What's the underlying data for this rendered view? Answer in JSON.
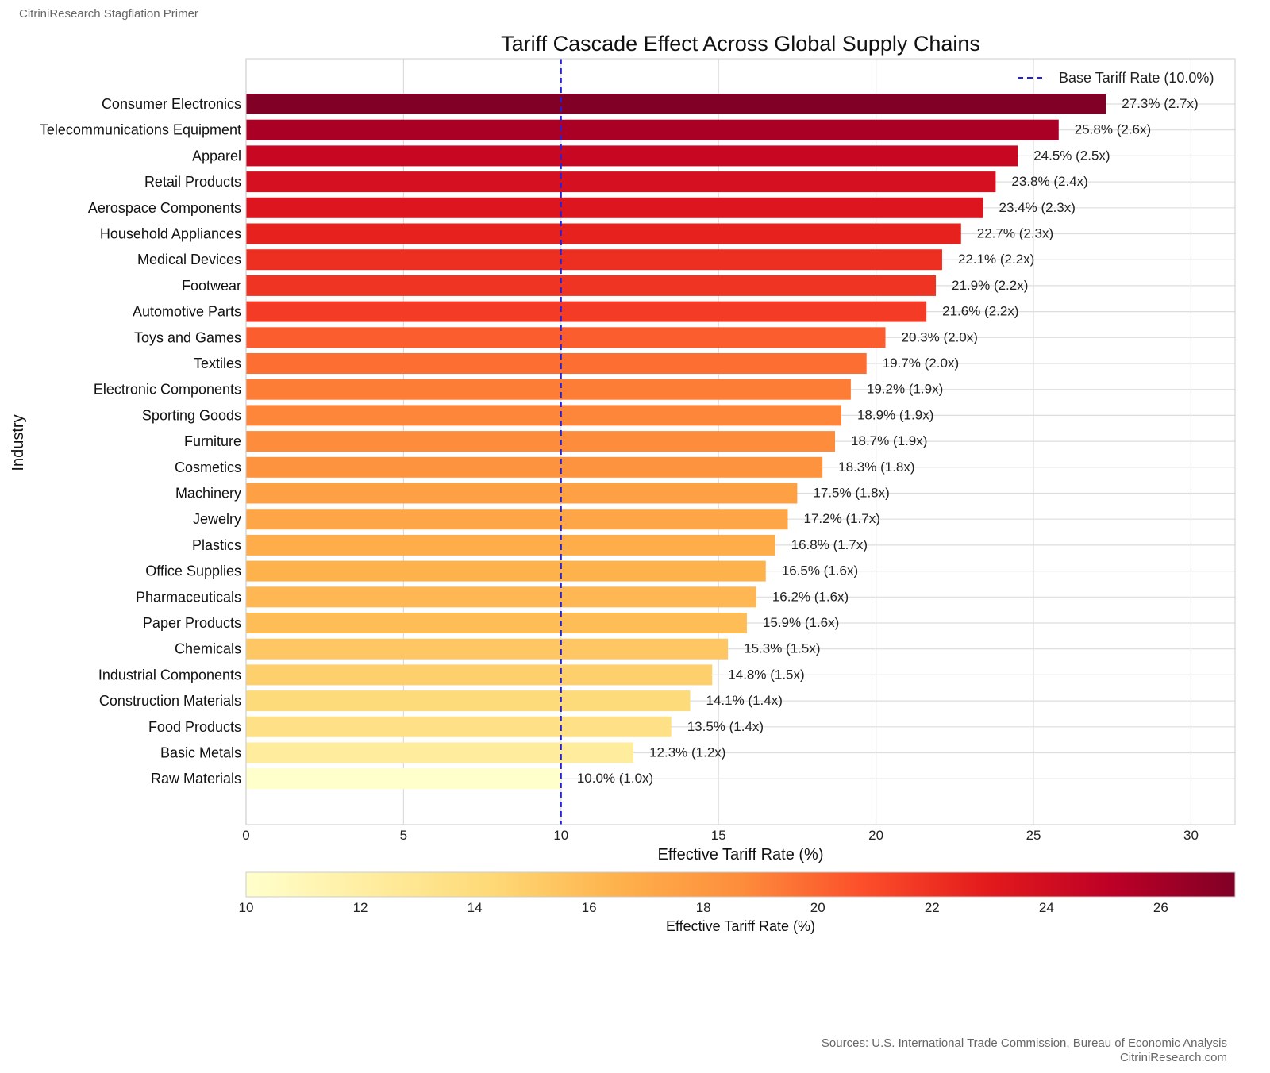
{
  "header": {
    "source_title": "CitriniResearch Stagflation Primer"
  },
  "footer": {
    "sources": "Sources: U.S. International Trade Commission, Bureau of Economic Analysis",
    "site": "CitriniResearch.com"
  },
  "colors": {
    "base_line": "#2222dd",
    "grid": "#dddddd",
    "spine": "#cccccc"
  },
  "chart_data": {
    "type": "bar",
    "orientation": "horizontal",
    "title": "Tariff Cascade Effect Across Global Supply Chains",
    "xlabel": "Effective Tariff Rate (%)",
    "ylabel": "Industry",
    "xlim": [
      0,
      31.4
    ],
    "xticks": [
      0,
      5,
      10,
      15,
      20,
      25,
      30
    ],
    "grid": true,
    "categories": [
      "Consumer Electronics",
      "Telecommunications Equipment",
      "Apparel",
      "Retail Products",
      "Aerospace Components",
      "Household Appliances",
      "Medical Devices",
      "Footwear",
      "Automotive Parts",
      "Toys and Games",
      "Textiles",
      "Electronic Components",
      "Sporting Goods",
      "Furniture",
      "Cosmetics",
      "Machinery",
      "Jewelry",
      "Plastics",
      "Office Supplies",
      "Pharmaceuticals",
      "Paper Products",
      "Chemicals",
      "Industrial Components",
      "Construction Materials",
      "Food Products",
      "Basic Metals",
      "Raw Materials"
    ],
    "values": [
      27.3,
      25.8,
      24.5,
      23.8,
      23.4,
      22.7,
      22.1,
      21.9,
      21.6,
      20.3,
      19.7,
      19.2,
      18.9,
      18.7,
      18.3,
      17.5,
      17.2,
      16.8,
      16.5,
      16.2,
      15.9,
      15.3,
      14.8,
      14.1,
      13.5,
      12.3,
      10.0
    ],
    "data_labels": [
      "27.3% (2.7x)",
      "25.8% (2.6x)",
      "24.5% (2.5x)",
      "23.8% (2.4x)",
      "23.4% (2.3x)",
      "22.7% (2.3x)",
      "22.1% (2.2x)",
      "21.9% (2.2x)",
      "21.6% (2.2x)",
      "20.3% (2.0x)",
      "19.7% (2.0x)",
      "19.2% (1.9x)",
      "18.9% (1.9x)",
      "18.7% (1.9x)",
      "18.3% (1.8x)",
      "17.5% (1.8x)",
      "17.2% (1.7x)",
      "16.8% (1.7x)",
      "16.5% (1.6x)",
      "16.2% (1.6x)",
      "15.9% (1.6x)",
      "15.3% (1.5x)",
      "14.8% (1.5x)",
      "14.1% (1.4x)",
      "13.5% (1.4x)",
      "12.3% (1.2x)",
      "10.0% (1.0x)"
    ],
    "reference_line": {
      "value": 10.0,
      "label": "Base Tariff Rate (10.0%)"
    },
    "legend_position": "top-right",
    "colorbar": {
      "label": "Effective Tariff Rate (%)",
      "range": [
        10.0,
        27.3
      ],
      "ticks": [
        10,
        12,
        14,
        16,
        18,
        20,
        22,
        24,
        26
      ],
      "colormap": "YlOrRd"
    }
  }
}
